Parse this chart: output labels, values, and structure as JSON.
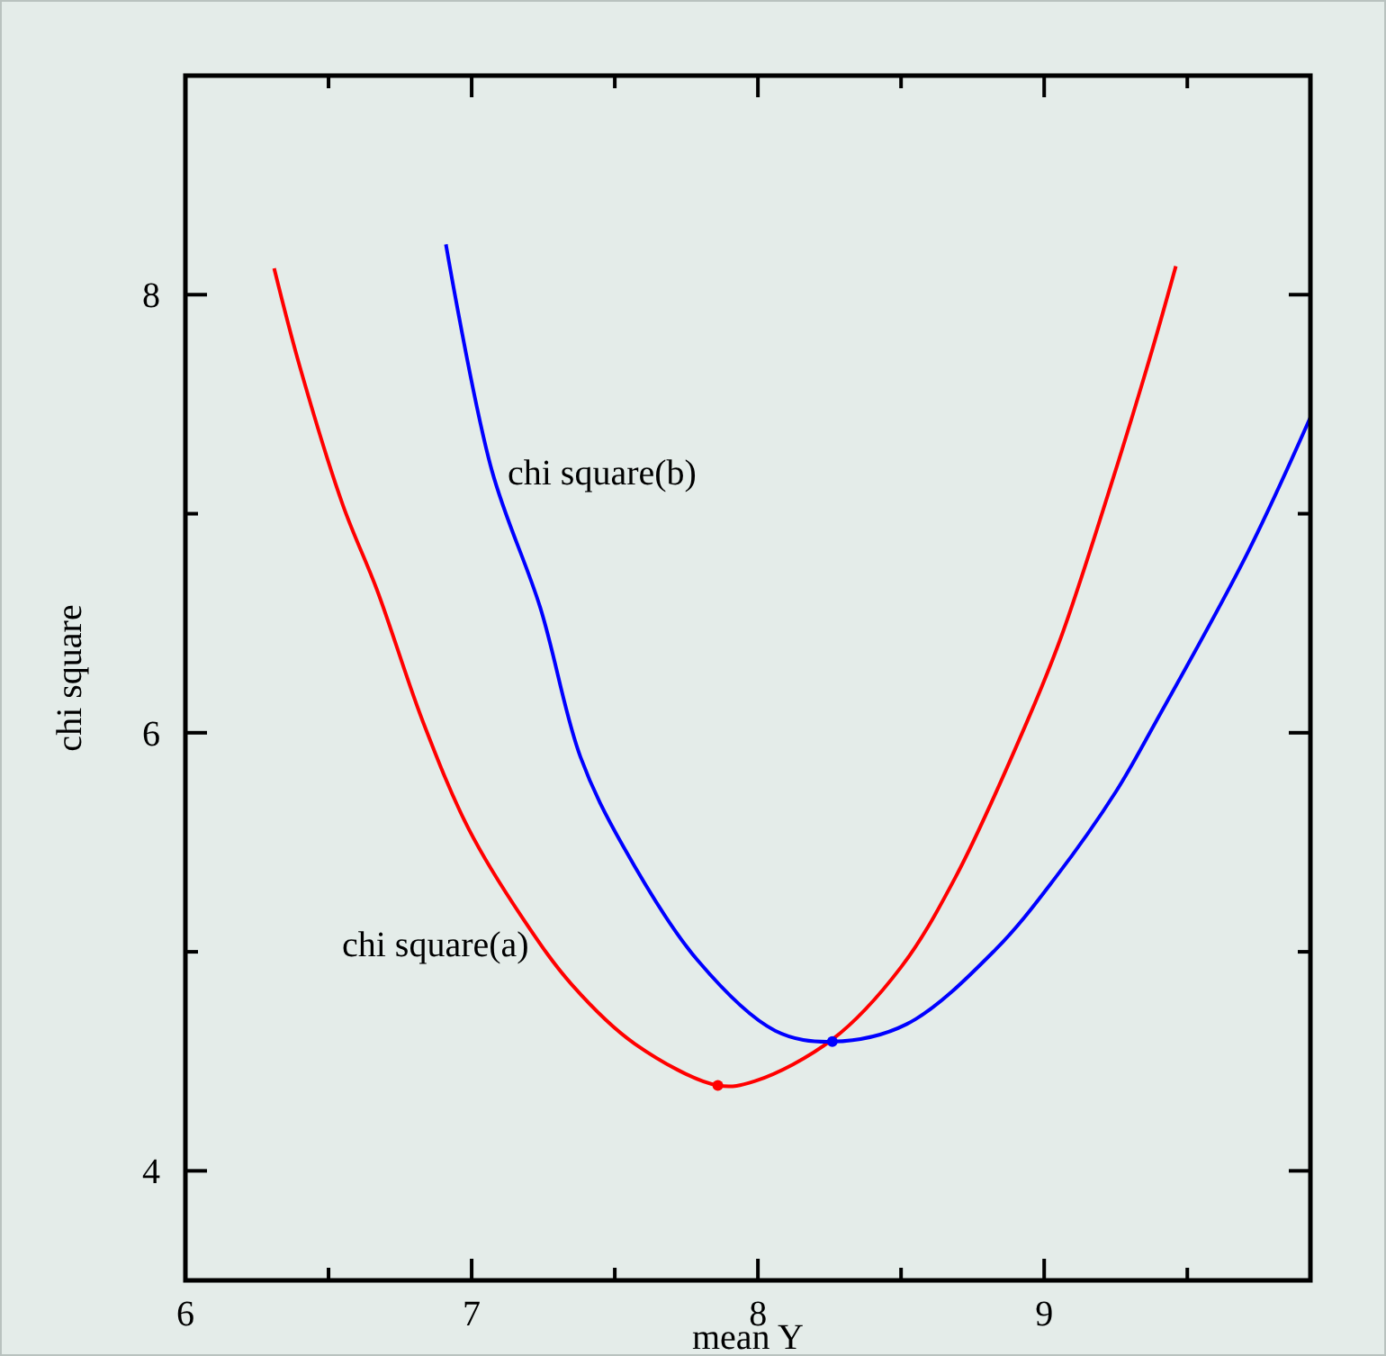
{
  "chart_data": {
    "type": "line",
    "xlabel": "mean Y",
    "ylabel": "chi square",
    "xlim": [
      6,
      9.93
    ],
    "ylim": [
      3.5,
      9
    ],
    "xticks": [
      6,
      {
        "value": 6.5,
        "label": null
      },
      7,
      {
        "value": 7.5,
        "label": null
      },
      8,
      {
        "value": 8.5,
        "label": null
      },
      9,
      {
        "value": 9.5,
        "label": null
      }
    ],
    "yticks": [
      4,
      {
        "value": 5,
        "label": null
      },
      6,
      {
        "value": 7,
        "label": null
      },
      8,
      {
        "value": 9,
        "label": null
      }
    ],
    "grid": false,
    "line_style": "solid",
    "marker": "none",
    "series": [
      {
        "name": "chi square(a)",
        "color": "#ff0000",
        "x": [
          6.31,
          6.4,
          6.55,
          6.67,
          6.83,
          6.99,
          7.18,
          7.35,
          7.57,
          7.86,
          7.99,
          8.26,
          8.5,
          8.69,
          8.94,
          9.06,
          9.25,
          9.38,
          9.46
        ],
        "values": [
          8.12,
          7.67,
          7.04,
          6.65,
          6.05,
          5.56,
          5.15,
          4.85,
          4.58,
          4.39,
          4.41,
          4.6,
          4.93,
          5.34,
          6.05,
          6.44,
          7.2,
          7.76,
          8.13
        ]
      },
      {
        "name": "chi square(b)",
        "color": "#0000ff",
        "x": [
          6.91,
          7.07,
          7.24,
          7.38,
          7.53,
          7.79,
          8.06,
          8.26,
          8.52,
          8.83,
          9.04,
          9.25,
          9.39,
          9.71,
          9.93
        ],
        "values": [
          8.23,
          7.2,
          6.57,
          5.89,
          5.48,
          4.96,
          4.64,
          4.59,
          4.67,
          5.01,
          5.34,
          5.73,
          6.05,
          6.82,
          7.44
        ]
      },
      {
        "type": "scatter",
        "marker": "circle",
        "color": "#ff0000",
        "x": [
          7.86
        ],
        "values": [
          4.39
        ]
      },
      {
        "type": "scatter",
        "marker": "circle",
        "color": "#0000ff",
        "x": [
          8.26
        ],
        "values": [
          4.59
        ]
      }
    ]
  }
}
